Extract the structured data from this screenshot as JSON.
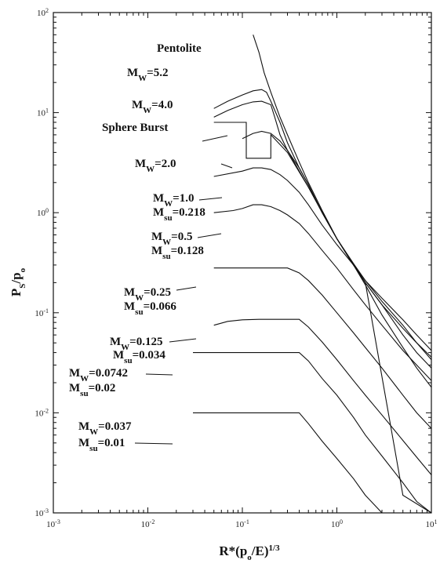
{
  "chart_data": {
    "type": "line",
    "title": "",
    "xlabel": "R*(po/E)^1/3",
    "ylabel": "PS/po",
    "x_scale": "log",
    "y_scale": "log",
    "xlim": [
      0.001,
      10
    ],
    "ylim": [
      0.001,
      100
    ],
    "grid": false,
    "legend": "none",
    "x_ticks": [
      {
        "base": "10",
        "exp": "-3",
        "value": 0.001
      },
      {
        "base": "10",
        "exp": "-2",
        "value": 0.01
      },
      {
        "base": "10",
        "exp": "-1",
        "value": 0.1
      },
      {
        "base": "10",
        "exp": "0",
        "value": 1
      },
      {
        "base": "10",
        "exp": "1",
        "value": 10
      }
    ],
    "y_ticks": [
      {
        "base": "10",
        "exp": "2",
        "value": 100
      },
      {
        "base": "10",
        "exp": "1",
        "value": 10
      },
      {
        "base": "10",
        "exp": "0",
        "value": 1
      },
      {
        "base": "10",
        "exp": "-1",
        "value": 0.1
      },
      {
        "base": "10",
        "exp": "-2",
        "value": 0.01
      },
      {
        "base": "10",
        "exp": "-3",
        "value": 0.001
      }
    ],
    "series": [
      {
        "name": "Pentolite",
        "x": [
          0.13,
          0.15,
          0.17,
          0.2,
          0.25,
          0.3,
          0.4,
          0.5,
          0.7,
          1.0,
          1.5,
          2.0,
          3.0,
          5.0,
          7.0,
          10.0
        ],
        "y": [
          60,
          40,
          25,
          16,
          9,
          6,
          3.2,
          2.0,
          1.05,
          0.55,
          0.3,
          0.2,
          0.12,
          0.07,
          0.05,
          0.036
        ]
      },
      {
        "name": "Mw=5.2",
        "x": [
          0.05,
          0.07,
          0.1,
          0.13,
          0.16,
          0.18,
          0.2,
          0.25,
          0.3,
          0.4,
          0.5,
          0.7,
          1.0,
          1.5,
          2.0,
          3.0,
          5.0,
          7.0,
          10.0
        ],
        "y": [
          11,
          13,
          15,
          16.5,
          17,
          16,
          13,
          8,
          5,
          2.8,
          1.9,
          1.0,
          0.55,
          0.3,
          0.19,
          0.095,
          0.045,
          0.028,
          0.018
        ]
      },
      {
        "name": "Mw=4.0",
        "x": [
          0.05,
          0.07,
          0.1,
          0.13,
          0.16,
          0.2,
          0.22,
          0.25,
          0.3,
          0.4,
          0.5,
          0.7,
          1.0,
          1.5,
          2.0,
          3.0,
          5.0,
          7.0,
          10.0
        ],
        "y": [
          9,
          10.5,
          12,
          12.8,
          13,
          12,
          9,
          6,
          4.2,
          2.6,
          1.8,
          1.0,
          0.55,
          0.3,
          0.2,
          0.12,
          0.06,
          0.04,
          0.028
        ]
      },
      {
        "name": "Sphere Burst",
        "x": [
          0.05,
          0.08,
          0.11,
          0.11,
          0.15,
          0.2,
          0.2,
          0.3,
          0.5,
          1.0,
          2.0,
          5.0,
          10.0
        ],
        "y": [
          8,
          8,
          8,
          3.5,
          3.5,
          3.5,
          6,
          4,
          1.8,
          0.55,
          0.2,
          0.0015,
          0.0002
        ]
      },
      {
        "name": "Mw=2.0",
        "x": [
          0.1,
          0.13,
          0.16,
          0.2,
          0.25,
          0.3,
          0.4,
          0.5,
          0.7,
          1.0,
          1.5,
          2.0,
          3.0,
          5.0,
          7.0,
          10.0
        ],
        "y": [
          5.5,
          6.2,
          6.5,
          6.2,
          5.2,
          4.2,
          2.8,
          1.9,
          1.0,
          0.55,
          0.31,
          0.21,
          0.13,
          0.075,
          0.05,
          0.034
        ]
      },
      {
        "name": "Mw=1.0, Msu=0.218",
        "x": [
          0.05,
          0.1,
          0.13,
          0.16,
          0.2,
          0.25,
          0.3,
          0.4,
          0.5,
          0.7,
          1.0,
          1.5,
          2.0,
          3.0,
          5.0,
          7.0,
          10.0
        ],
        "y": [
          2.3,
          2.6,
          2.8,
          2.8,
          2.7,
          2.4,
          2.1,
          1.6,
          1.2,
          0.75,
          0.48,
          0.3,
          0.21,
          0.14,
          0.085,
          0.06,
          0.042
        ]
      },
      {
        "name": "Mw=0.5, Msu=0.128",
        "x": [
          0.05,
          0.08,
          0.1,
          0.13,
          0.16,
          0.2,
          0.25,
          0.3,
          0.4,
          0.5,
          0.7,
          1.0,
          1.5,
          2.0,
          3.0,
          5.0,
          7.0,
          10.0
        ],
        "y": [
          1.0,
          1.05,
          1.1,
          1.2,
          1.2,
          1.15,
          1.05,
          0.95,
          0.78,
          0.62,
          0.42,
          0.28,
          0.17,
          0.12,
          0.075,
          0.042,
          0.03,
          0.021
        ]
      },
      {
        "name": "Mw=0.25, Msu=0.066",
        "x": [
          0.05,
          0.1,
          0.2,
          0.3,
          0.4,
          0.5,
          0.7,
          1.0,
          1.5,
          2.0,
          3.0,
          5.0,
          7.0,
          10.0
        ],
        "y": [
          0.28,
          0.28,
          0.28,
          0.28,
          0.25,
          0.21,
          0.15,
          0.1,
          0.063,
          0.045,
          0.028,
          0.015,
          0.01,
          0.007
        ]
      },
      {
        "name": "Mw=0.125, Msu=0.034",
        "x": [
          0.05,
          0.07,
          0.1,
          0.15,
          0.2,
          0.3,
          0.4,
          0.5,
          0.7,
          1.0,
          1.5,
          2.0,
          3.0,
          5.0,
          7.0,
          10.0
        ],
        "y": [
          0.075,
          0.082,
          0.085,
          0.086,
          0.086,
          0.086,
          0.086,
          0.072,
          0.051,
          0.034,
          0.021,
          0.015,
          0.0095,
          0.0053,
          0.0036,
          0.0024
        ]
      },
      {
        "name": "Mw=0.0742, Msu=0.02",
        "x": [
          0.03,
          0.1,
          0.2,
          0.3,
          0.4,
          0.5,
          0.7,
          1.0,
          1.5,
          2.0,
          3.0,
          5.0,
          7.0,
          10.0
        ],
        "y": [
          0.04,
          0.04,
          0.04,
          0.04,
          0.04,
          0.033,
          0.022,
          0.015,
          0.009,
          0.006,
          0.0037,
          0.002,
          0.0013,
          0.0009
        ]
      },
      {
        "name": "Mw=0.037, Msu=0.01",
        "x": [
          0.03,
          0.1,
          0.2,
          0.3,
          0.4,
          0.5,
          0.7,
          1.0,
          1.5,
          2.0,
          2.5,
          3.0
        ],
        "y": [
          0.01,
          0.01,
          0.01,
          0.01,
          0.01,
          0.0078,
          0.0052,
          0.0035,
          0.0022,
          0.0015,
          0.0012,
          0.001
        ]
      }
    ],
    "annotations": [
      {
        "id": "pentolite",
        "text": "Pentolite",
        "sub": "",
        "suffix": ""
      },
      {
        "id": "mw52",
        "text": "M",
        "sub": "W",
        "suffix": "=5.2"
      },
      {
        "id": "mw40",
        "text": "M",
        "sub": "W",
        "suffix": "=4.0"
      },
      {
        "id": "sphere",
        "text": "Sphere Burst",
        "sub": "",
        "suffix": ""
      },
      {
        "id": "mw20",
        "text": "M",
        "sub": "W",
        "suffix": "=2.0"
      },
      {
        "id": "mw10",
        "text": "M",
        "sub": "W",
        "suffix": "=1.0"
      },
      {
        "id": "msu218",
        "text": "M",
        "sub": "su",
        "suffix": "=0.218"
      },
      {
        "id": "mw05",
        "text": "M",
        "sub": "W",
        "suffix": "=0.5"
      },
      {
        "id": "msu128",
        "text": "M",
        "sub": "su",
        "suffix": "=0.128"
      },
      {
        "id": "mw025",
        "text": "M",
        "sub": "W",
        "suffix": "=0.25"
      },
      {
        "id": "msu066",
        "text": "M",
        "sub": "su",
        "suffix": "=0.066"
      },
      {
        "id": "mw0125",
        "text": "M",
        "sub": "W",
        "suffix": "=0.125"
      },
      {
        "id": "msu034",
        "text": "M",
        "sub": "su",
        "suffix": "=0.034"
      },
      {
        "id": "mw0742",
        "text": "M",
        "sub": "W",
        "suffix": "=0.0742"
      },
      {
        "id": "msu002",
        "text": "M",
        "sub": "su",
        "suffix": "=0.02"
      },
      {
        "id": "mw0037",
        "text": "M",
        "sub": "W",
        "suffix": "=0.037"
      },
      {
        "id": "msu001",
        "text": "M",
        "sub": "su",
        "suffix": "=0.01"
      }
    ],
    "axis_titles": {
      "y": {
        "base": "P",
        "sub1": "S",
        "mid": "/p",
        "sub2": "o"
      },
      "x": {
        "base": "R*(p",
        "sub": "o",
        "mid": "/E)",
        "sup": "1/3"
      }
    }
  }
}
